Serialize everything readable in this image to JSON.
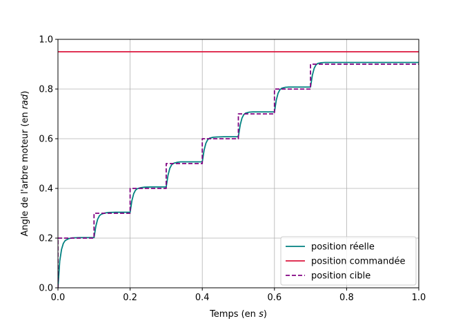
{
  "chart_data": {
    "type": "line",
    "title": "",
    "xlabel": "Temps (en ",
    "xlabel_unit": "s",
    "xlabel_close": ")",
    "ylabel": "Angle de l'arbre moteur (en ",
    "ylabel_unit": "rad",
    "ylabel_close": ")",
    "xlim": [
      0,
      1.0
    ],
    "ylim": [
      0,
      1.0
    ],
    "xticks": [
      "0.0",
      "0.2",
      "0.4",
      "0.6",
      "0.8",
      "1.0"
    ],
    "yticks": [
      "0.0",
      "0.2",
      "0.4",
      "0.6",
      "0.8",
      "1.0"
    ],
    "grid": true,
    "legend_position": "lower-right",
    "series": [
      {
        "name": "position réelle",
        "color": "#008080",
        "style": "solid",
        "x": [
          0.0,
          0.005,
          0.01,
          0.015,
          0.02,
          0.03,
          0.04,
          0.06,
          0.08,
          0.1,
          0.105,
          0.11,
          0.115,
          0.12,
          0.13,
          0.14,
          0.16,
          0.18,
          0.2,
          0.205,
          0.21,
          0.215,
          0.22,
          0.23,
          0.24,
          0.26,
          0.28,
          0.3,
          0.305,
          0.31,
          0.315,
          0.32,
          0.33,
          0.34,
          0.36,
          0.38,
          0.4,
          0.405,
          0.41,
          0.415,
          0.42,
          0.43,
          0.44,
          0.46,
          0.48,
          0.5,
          0.505,
          0.51,
          0.515,
          0.52,
          0.53,
          0.54,
          0.56,
          0.58,
          0.6,
          0.605,
          0.61,
          0.615,
          0.62,
          0.63,
          0.64,
          0.66,
          0.68,
          0.7,
          0.705,
          0.71,
          0.715,
          0.72,
          0.73,
          0.74,
          0.76,
          0.8,
          0.9,
          1.0
        ],
        "y": [
          0.0,
          0.108,
          0.155,
          0.179,
          0.19,
          0.198,
          0.201,
          0.202,
          0.202,
          0.202,
          0.248,
          0.276,
          0.29,
          0.296,
          0.301,
          0.303,
          0.304,
          0.304,
          0.304,
          0.351,
          0.379,
          0.393,
          0.399,
          0.403,
          0.405,
          0.406,
          0.406,
          0.406,
          0.453,
          0.481,
          0.495,
          0.501,
          0.505,
          0.507,
          0.507,
          0.507,
          0.507,
          0.554,
          0.582,
          0.596,
          0.602,
          0.606,
          0.607,
          0.608,
          0.608,
          0.608,
          0.655,
          0.683,
          0.697,
          0.703,
          0.707,
          0.708,
          0.708,
          0.708,
          0.708,
          0.755,
          0.783,
          0.797,
          0.803,
          0.807,
          0.808,
          0.808,
          0.808,
          0.808,
          0.855,
          0.883,
          0.897,
          0.903,
          0.906,
          0.907,
          0.907,
          0.907,
          0.907,
          0.907
        ]
      },
      {
        "name": "position commandée",
        "color": "#dc143c",
        "style": "solid",
        "x": [
          0.0,
          1.0
        ],
        "y": [
          0.95,
          0.95
        ]
      },
      {
        "name": "position cible",
        "color": "#800080",
        "style": "dashed",
        "x": [
          0.0,
          0.0,
          0.1,
          0.1,
          0.2,
          0.2,
          0.3,
          0.3,
          0.4,
          0.4,
          0.5,
          0.5,
          0.6,
          0.6,
          0.7,
          0.7,
          1.0
        ],
        "y": [
          0.0,
          0.2,
          0.2,
          0.3,
          0.3,
          0.4,
          0.4,
          0.5,
          0.5,
          0.6,
          0.6,
          0.7,
          0.7,
          0.8,
          0.8,
          0.9,
          0.9
        ]
      }
    ]
  }
}
